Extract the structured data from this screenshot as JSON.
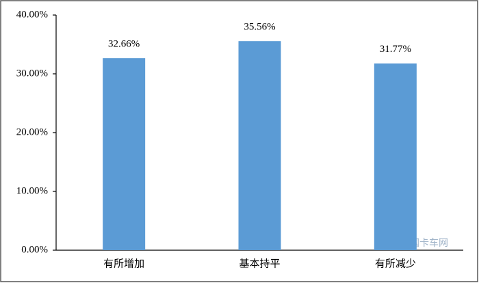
{
  "chart_data": {
    "type": "bar",
    "categories": [
      "有所增加",
      "基本持平",
      "有所减少"
    ],
    "values": [
      32.66,
      35.56,
      31.77
    ],
    "value_labels": [
      "32.66%",
      "35.56%",
      "31.77%"
    ],
    "color": "#5b9bd5",
    "ylim": [
      0,
      40
    ],
    "yticks": [
      {
        "value": 0,
        "label": "0.00%"
      },
      {
        "value": 10,
        "label": "10.00%"
      },
      {
        "value": 20,
        "label": "20.00%"
      },
      {
        "value": 30,
        "label": "30.00%"
      },
      {
        "value": 40,
        "label": "40.00%"
      }
    ],
    "grid": false
  },
  "watermark": "中国卡车网"
}
